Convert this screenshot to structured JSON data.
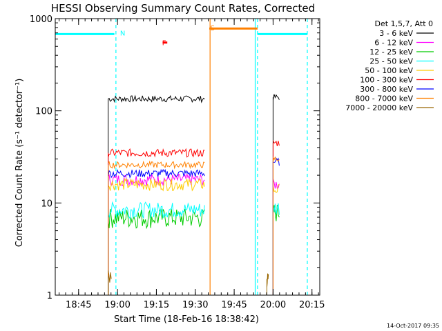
{
  "chart_data": {
    "type": "line",
    "title": "HESSI Observing Summary Count Rates, Corrected",
    "xlabel": "Start Time (18-Feb-16 18:38:42)",
    "ylabel": "Corrected Count Rate (s⁻¹ detector⁻¹)",
    "yscale": "log",
    "ylim": [
      1,
      1000
    ],
    "xlim_minutes": [
      18.6,
      20.3
    ],
    "yticks": [
      {
        "value": 1,
        "label": "1"
      },
      {
        "value": 10,
        "label": "10"
      },
      {
        "value": 100,
        "label": "100"
      },
      {
        "value": 1000,
        "label": "1000"
      }
    ],
    "xticks": [
      {
        "value": 18.75,
        "label": "18:45"
      },
      {
        "value": 19.0,
        "label": "19:00"
      },
      {
        "value": 19.25,
        "label": "19:15"
      },
      {
        "value": 19.5,
        "label": "19:30"
      },
      {
        "value": 19.75,
        "label": "19:45"
      },
      {
        "value": 20.0,
        "label": "20:00"
      },
      {
        "value": 20.25,
        "label": "20:15"
      }
    ],
    "legend_title": "Det 1,5,7, Att 0",
    "legend_position": "right",
    "series": [
      {
        "name": "3 - 6 keV",
        "color": "#000000",
        "segments": [
          [
            18.94,
            19.56,
            135
          ],
          [
            20.0,
            20.04,
            140
          ]
        ],
        "noise": 0.08
      },
      {
        "name": "6 - 12 keV",
        "color": "#ff00ff",
        "segments": [
          [
            18.94,
            19.56,
            18
          ],
          [
            20.0,
            20.04,
            16
          ]
        ],
        "noise": 0.15
      },
      {
        "name": "12 - 25 keV",
        "color": "#00cc00",
        "segments": [
          [
            18.94,
            19.56,
            7
          ],
          [
            20.0,
            20.04,
            8
          ]
        ],
        "noise": 0.25
      },
      {
        "name": "25 - 50 keV",
        "color": "#00ffff",
        "segments": [
          [
            18.94,
            19.56,
            8.5
          ],
          [
            20.0,
            20.04,
            9
          ]
        ],
        "noise": 0.2
      },
      {
        "name": "50 - 100 keV",
        "color": "#ffcc00",
        "segments": [
          [
            18.94,
            19.56,
            16
          ],
          [
            20.0,
            20.04,
            14
          ]
        ],
        "noise": 0.15
      },
      {
        "name": "100 - 300 keV",
        "color": "#ff0000",
        "segments": [
          [
            18.94,
            19.56,
            35
          ],
          [
            20.0,
            20.04,
            45
          ]
        ],
        "noise": 0.1
      },
      {
        "name": "300 - 800 keV",
        "color": "#0000ff",
        "segments": [
          [
            18.94,
            19.56,
            21
          ],
          [
            20.0,
            20.04,
            28
          ]
        ],
        "noise": 0.1
      },
      {
        "name": "800 - 7000 keV",
        "color": "#ff8000",
        "segments": [
          [
            18.94,
            19.56,
            26
          ],
          [
            20.0,
            20.04,
            30
          ]
        ],
        "noise": 0.08
      },
      {
        "name": "7000 - 20000 keV",
        "color": "#996600",
        "segments": [
          [
            18.94,
            18.96,
            1.6
          ],
          [
            19.96,
            19.97,
            1.5
          ]
        ],
        "noise": 0.2
      }
    ],
    "flags": [
      {
        "label": "N",
        "color": "#00ffff",
        "start": 18.6,
        "end": 18.98,
        "level": 680
      },
      {
        "label": "N",
        "color": "#00ffff",
        "start": 19.9,
        "end": 20.22,
        "level": 680
      },
      {
        "label": "S",
        "color": "#ff8000",
        "start": 19.59,
        "end": 19.9,
        "level": 780
      },
      {
        "label": "F",
        "color": "#ff0000",
        "start": 19.29,
        "end": 19.32,
        "level": 550
      }
    ],
    "vertical_markers": [
      {
        "time": 18.99,
        "color": "#00ffff",
        "style": "dashed"
      },
      {
        "time": 19.9,
        "color": "#00ffff",
        "style": "dashed"
      },
      {
        "time": 20.22,
        "color": "#00ffff",
        "style": "dashed"
      },
      {
        "time": 19.595,
        "color": "#ff8000",
        "style": "solid"
      },
      {
        "time": 19.885,
        "color": "#00ffff",
        "style": "solid"
      }
    ],
    "flag_labels": [
      {
        "text": "N",
        "color": "#00ffff",
        "time": 18.99,
        "level": 700
      },
      {
        "text": "S",
        "color": "#ff8000",
        "time": 19.57,
        "level": 800
      },
      {
        "text": "F",
        "color": "#ff0000",
        "time": 19.26,
        "level": 550
      }
    ]
  },
  "footer": {
    "timestamp": "14-Oct-2017 09:35"
  }
}
